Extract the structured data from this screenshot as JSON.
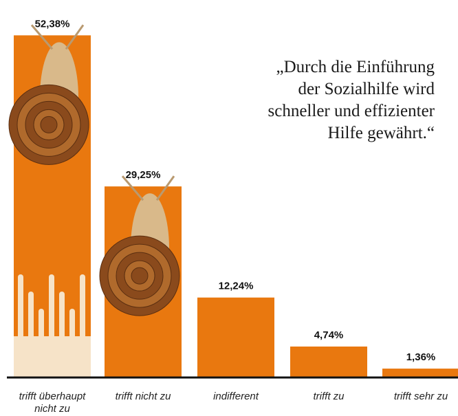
{
  "chart_data": {
    "type": "bar",
    "title": [
      "„Durch die Einführung",
      "der Sozialhilfe wird",
      "schneller und effizienter",
      "Hilfe gewährt.“"
    ],
    "categories": [
      "trifft überhaupt nicht zu",
      "trifft nicht zu",
      "indifferent",
      "trifft zu",
      "trifft sehr zu"
    ],
    "values": [
      52.38,
      29.25,
      12.24,
      4.74,
      1.36
    ],
    "value_labels": [
      "52,38%",
      "29,25%",
      "12,24%",
      "4,74%",
      "1,36%"
    ],
    "color": "#e9780f"
  }
}
